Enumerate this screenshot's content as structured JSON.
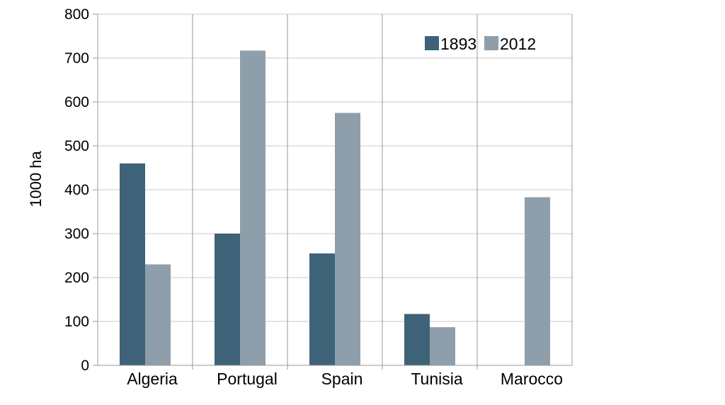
{
  "chart_data": {
    "type": "bar",
    "ylabel": "1000 ha",
    "xlabel": "",
    "ylim": [
      0,
      800
    ],
    "yticks": [
      0,
      100,
      200,
      300,
      400,
      500,
      600,
      700,
      800
    ],
    "grid": true,
    "legend_position": "top-right",
    "categories": [
      "Algeria",
      "Portugal",
      "Spain",
      "Tunisia",
      "Marocco"
    ],
    "series": [
      {
        "name": "1893",
        "color": "#3e6378",
        "values": [
          460,
          300,
          255,
          117,
          null
        ]
      },
      {
        "name": "2012",
        "color": "#8f9eab",
        "values": [
          230,
          717,
          575,
          87,
          383
        ]
      }
    ]
  }
}
